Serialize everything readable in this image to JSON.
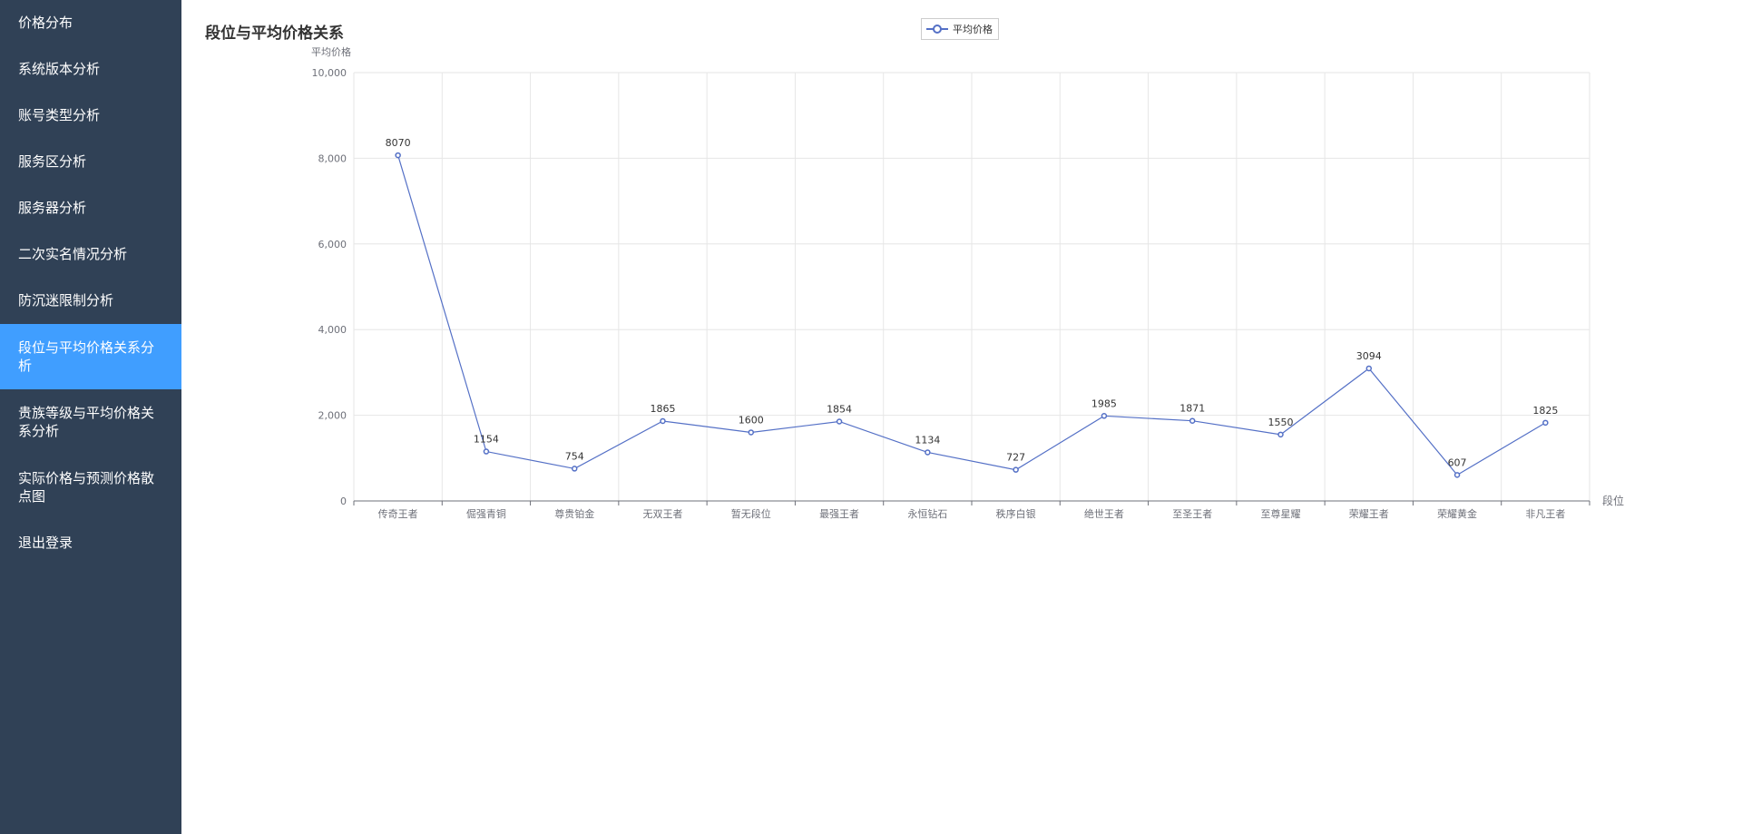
{
  "sidebar": {
    "items": [
      {
        "label": "价格分布",
        "active": false
      },
      {
        "label": "系统版本分析",
        "active": false
      },
      {
        "label": "账号类型分析",
        "active": false
      },
      {
        "label": "服务区分析",
        "active": false
      },
      {
        "label": "服务器分析",
        "active": false
      },
      {
        "label": "二次实名情况分析",
        "active": false
      },
      {
        "label": "防沉迷限制分析",
        "active": false
      },
      {
        "label": "段位与平均价格关系分析",
        "active": true
      },
      {
        "label": "贵族等级与平均价格关系分析",
        "active": false
      },
      {
        "label": "实际价格与预测价格散点图",
        "active": false
      },
      {
        "label": "退出登录",
        "active": false
      }
    ]
  },
  "colors": {
    "sidebar_bg": "#304156",
    "active_bg": "#409eff",
    "series_line": "#5470c6"
  },
  "chart_data": {
    "type": "line",
    "title": "段位与平均价格关系",
    "xlabel": "段位",
    "ylabel": "平均价格",
    "legend_position": "top-center",
    "grid": true,
    "ylim": [
      0,
      10000
    ],
    "yticks": [
      "0",
      "2,000",
      "4,000",
      "6,000",
      "8,000",
      "10,000"
    ],
    "categories": [
      "传奇王者",
      "倔强青铜",
      "尊贵铂金",
      "无双王者",
      "暂无段位",
      "最强王者",
      "永恒钻石",
      "秩序白银",
      "绝世王者",
      "至圣王者",
      "至尊星耀",
      "荣耀王者",
      "荣耀黄金",
      "非凡王者"
    ],
    "series": [
      {
        "name": "平均价格",
        "values": [
          8070,
          1154,
          754,
          1865,
          1600,
          1854,
          1134,
          727,
          1985,
          1871,
          1550,
          3094,
          607,
          1825
        ]
      }
    ]
  }
}
